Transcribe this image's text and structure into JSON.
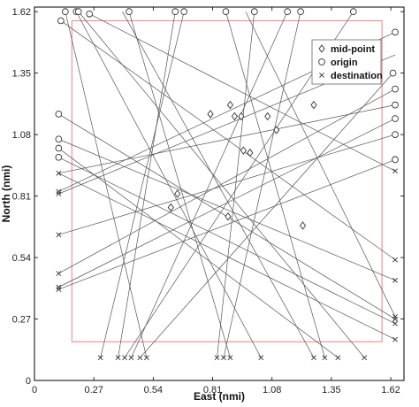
{
  "chart_data": {
    "type": "scatter",
    "xlabel": "East (nmi)",
    "ylabel": "North (nmi)",
    "xlim": [
      0,
      1.68
    ],
    "ylim": [
      0,
      1.64
    ],
    "xticks": [
      0,
      0.27,
      0.54,
      0.81,
      1.08,
      1.35,
      1.62
    ],
    "xtick_labels": [
      "0",
      "0.27",
      "0.54",
      "0.81",
      "1.08",
      "1.35",
      "1.62"
    ],
    "yticks": [
      0,
      0.27,
      0.54,
      0.81,
      1.08,
      1.35,
      1.62
    ],
    "ytick_labels": [
      "0",
      "0.27",
      "0.54",
      "0.81",
      "1.08",
      "1.35",
      "1.62"
    ],
    "boundary": {
      "x0": 0.17,
      "y0": 0.17,
      "x1": 1.58,
      "y1": 1.58,
      "color": "#f08080"
    },
    "legend": {
      "position": "top-right",
      "entries": [
        {
          "marker": "diamond",
          "label": "mid-point"
        },
        {
          "marker": "circle",
          "label": "origin"
        },
        {
          "marker": "cross",
          "label": "destination"
        }
      ]
    },
    "series": [
      {
        "label": "origin",
        "marker": "circle",
        "points": [
          [
            0.14,
            1.62
          ],
          [
            0.19,
            1.62
          ],
          [
            0.2,
            1.62
          ],
          [
            0.43,
            1.62
          ],
          [
            0.64,
            1.62
          ],
          [
            0.68,
            1.62
          ],
          [
            0.87,
            1.62
          ],
          [
            1.0,
            1.62
          ],
          [
            1.15,
            1.62
          ],
          [
            1.21,
            1.62
          ],
          [
            1.45,
            1.62
          ],
          [
            0.25,
            1.61
          ],
          [
            0.12,
            1.58
          ],
          [
            1.64,
            1.53
          ],
          [
            1.64,
            1.28
          ],
          [
            1.64,
            1.21
          ],
          [
            1.64,
            1.15
          ],
          [
            1.64,
            1.08
          ],
          [
            1.64,
            0.97
          ],
          [
            0.11,
            1.17
          ],
          [
            0.11,
            1.06
          ],
          [
            0.11,
            1.02
          ],
          [
            0.11,
            0.98
          ],
          [
            1.63,
            1.35
          ]
        ]
      },
      {
        "label": "destination",
        "marker": "cross",
        "points": [
          [
            0.3,
            0.1
          ],
          [
            0.38,
            0.1
          ],
          [
            0.41,
            0.1
          ],
          [
            0.44,
            0.1
          ],
          [
            0.48,
            0.1
          ],
          [
            0.51,
            0.1
          ],
          [
            0.83,
            0.1
          ],
          [
            0.86,
            0.1
          ],
          [
            0.89,
            0.1
          ],
          [
            1.03,
            0.1
          ],
          [
            1.27,
            0.1
          ],
          [
            1.32,
            0.1
          ],
          [
            1.38,
            0.1
          ],
          [
            1.5,
            0.1
          ],
          [
            0.11,
            0.91
          ],
          [
            0.11,
            0.83
          ],
          [
            0.11,
            0.82
          ],
          [
            0.11,
            0.64
          ],
          [
            0.11,
            0.47
          ],
          [
            0.11,
            0.41
          ],
          [
            0.11,
            0.4
          ],
          [
            1.64,
            0.92
          ],
          [
            1.64,
            0.53
          ],
          [
            1.64,
            0.44
          ],
          [
            1.64,
            0.28
          ],
          [
            1.64,
            0.27
          ],
          [
            1.64,
            0.25
          ],
          [
            1.64,
            0.18
          ]
        ]
      },
      {
        "label": "mid-point",
        "marker": "diamond",
        "points": [
          [
            0.8,
            1.17
          ],
          [
            0.89,
            1.21
          ],
          [
            0.91,
            1.16
          ],
          [
            0.94,
            1.16
          ],
          [
            1.06,
            1.16
          ],
          [
            1.27,
            1.21
          ],
          [
            0.95,
            1.01
          ],
          [
            0.98,
            1.0
          ],
          [
            1.1,
            1.1
          ],
          [
            1.22,
            0.68
          ],
          [
            0.88,
            0.72
          ],
          [
            0.65,
            0.82
          ],
          [
            0.62,
            0.76
          ]
        ]
      }
    ],
    "segments": [
      [
        [
          0.14,
          1.62
        ],
        [
          0.51,
          0.1
        ]
      ],
      [
        [
          0.19,
          1.62
        ],
        [
          1.03,
          0.1
        ]
      ],
      [
        [
          0.2,
          1.62
        ],
        [
          1.5,
          0.1
        ]
      ],
      [
        [
          0.25,
          1.61
        ],
        [
          1.64,
          0.92
        ]
      ],
      [
        [
          0.12,
          1.58
        ],
        [
          1.64,
          0.53
        ]
      ],
      [
        [
          0.43,
          1.62
        ],
        [
          0.89,
          0.1
        ]
      ],
      [
        [
          0.64,
          1.62
        ],
        [
          0.38,
          0.1
        ]
      ],
      [
        [
          0.68,
          1.62
        ],
        [
          0.3,
          0.1
        ]
      ],
      [
        [
          0.87,
          1.62
        ],
        [
          1.32,
          0.1
        ]
      ],
      [
        [
          1.0,
          1.62
        ],
        [
          0.83,
          0.1
        ]
      ],
      [
        [
          1.15,
          1.62
        ],
        [
          0.44,
          0.1
        ]
      ],
      [
        [
          1.21,
          1.62
        ],
        [
          0.86,
          0.1
        ]
      ],
      [
        [
          1.45,
          1.62
        ],
        [
          0.41,
          0.1
        ]
      ],
      [
        [
          1.64,
          1.53
        ],
        [
          0.11,
          0.83
        ]
      ],
      [
        [
          1.64,
          1.28
        ],
        [
          0.11,
          0.47
        ]
      ],
      [
        [
          1.64,
          1.21
        ],
        [
          0.11,
          0.91
        ]
      ],
      [
        [
          1.64,
          1.15
        ],
        [
          0.11,
          0.41
        ]
      ],
      [
        [
          1.64,
          1.08
        ],
        [
          0.11,
          0.64
        ]
      ],
      [
        [
          1.64,
          0.97
        ],
        [
          0.11,
          0.4
        ]
      ],
      [
        [
          0.11,
          1.17
        ],
        [
          1.64,
          0.27
        ]
      ],
      [
        [
          0.11,
          1.06
        ],
        [
          1.64,
          0.44
        ]
      ],
      [
        [
          0.11,
          1.02
        ],
        [
          1.38,
          0.1
        ]
      ],
      [
        [
          0.11,
          0.98
        ],
        [
          1.64,
          0.25
        ]
      ],
      [
        [
          1.63,
          1.35
        ],
        [
          0.48,
          0.1
        ]
      ],
      [
        [
          0.11,
          0.82
        ],
        [
          1.64,
          1.43
        ]
      ],
      [
        [
          0.11,
          0.91
        ],
        [
          1.64,
          0.18
        ]
      ],
      [
        [
          0.4,
          1.62
        ],
        [
          1.27,
          0.1
        ]
      ],
      [
        [
          0.96,
          1.62
        ],
        [
          1.64,
          0.28
        ]
      ]
    ]
  }
}
